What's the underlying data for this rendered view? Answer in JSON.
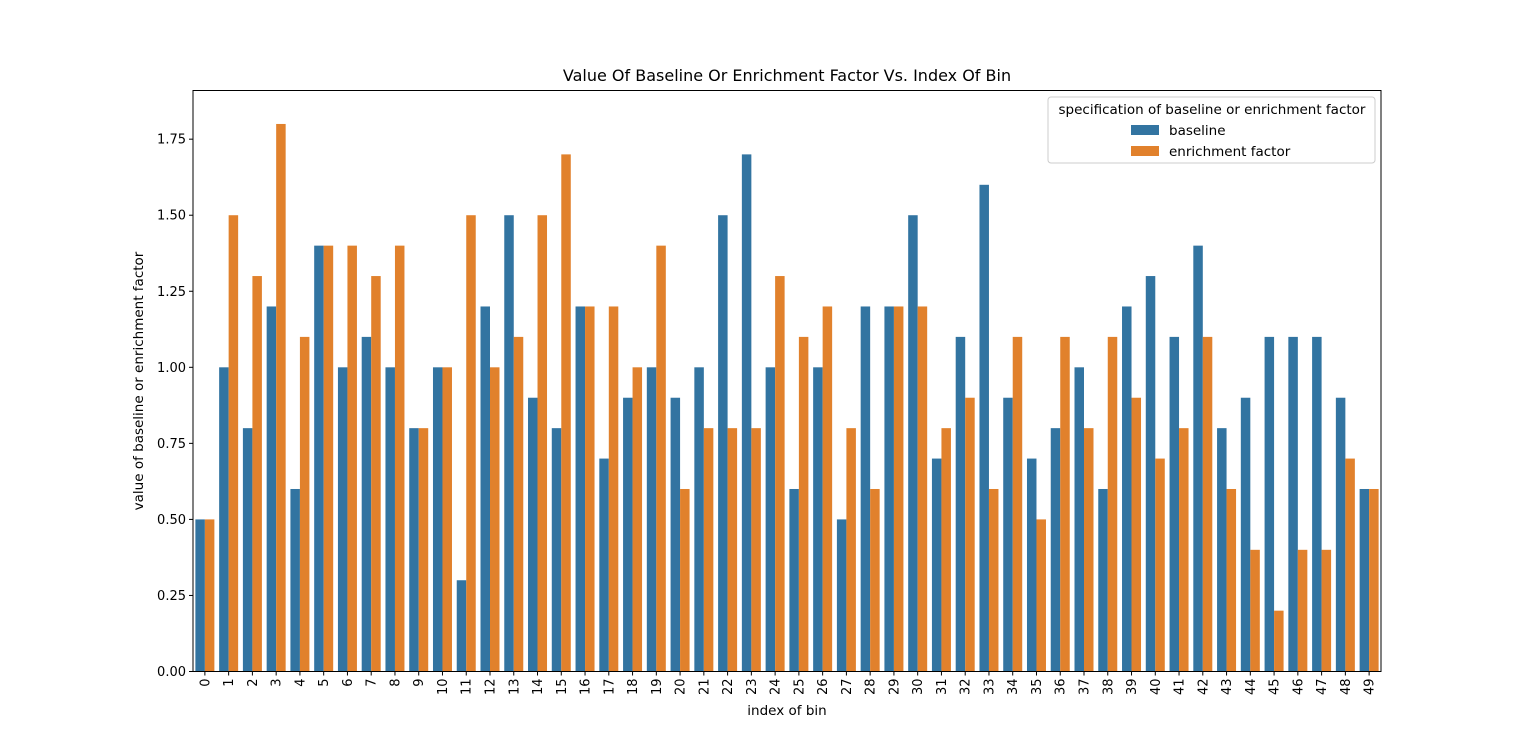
{
  "chart_data": {
    "type": "bar",
    "title": "Value Of Baseline Or Enrichment Factor Vs. Index Of Bin",
    "xlabel": "index of bin",
    "ylabel": "value of baseline or enrichment factor",
    "ylim": [
      0,
      1.91
    ],
    "yticks": [
      "0.00",
      "0.25",
      "0.50",
      "0.75",
      "1.00",
      "1.25",
      "1.50",
      "1.75"
    ],
    "grid": false,
    "legend": {
      "title": "specification of baseline or enrichment factor",
      "placement": "top-right"
    },
    "categories": [
      "0",
      "1",
      "2",
      "3",
      "4",
      "5",
      "6",
      "7",
      "8",
      "9",
      "10",
      "11",
      "12",
      "13",
      "14",
      "15",
      "16",
      "17",
      "18",
      "19",
      "20",
      "21",
      "22",
      "23",
      "24",
      "25",
      "26",
      "27",
      "28",
      "29",
      "30",
      "31",
      "32",
      "33",
      "34",
      "35",
      "36",
      "37",
      "38",
      "39",
      "40",
      "41",
      "42",
      "43",
      "44",
      "45",
      "46",
      "47",
      "48",
      "49"
    ],
    "series": [
      {
        "name": "baseline",
        "color": "#3274a1",
        "values": [
          0.5,
          1.0,
          0.8,
          1.2,
          0.6,
          1.4,
          1.0,
          1.1,
          1.0,
          0.8,
          1.0,
          0.3,
          1.2,
          1.5,
          0.9,
          0.8,
          1.2,
          0.7,
          0.9,
          1.0,
          0.9,
          1.0,
          1.5,
          1.7,
          1.0,
          0.6,
          1.0,
          0.5,
          1.2,
          1.2,
          1.5,
          0.7,
          1.1,
          1.6,
          0.9,
          0.7,
          0.8,
          1.0,
          0.6,
          1.2,
          1.3,
          1.1,
          1.4,
          0.8,
          0.9,
          1.1,
          1.1,
          1.1,
          0.9,
          0.6
        ]
      },
      {
        "name": "enrichment factor",
        "color": "#e1812c",
        "values": [
          0.5,
          1.5,
          1.3,
          1.8,
          1.1,
          1.4,
          1.4,
          1.3,
          1.4,
          0.8,
          1.0,
          1.5,
          1.0,
          1.1,
          1.5,
          1.7,
          1.2,
          1.2,
          1.0,
          1.4,
          0.6,
          0.8,
          0.8,
          0.8,
          1.3,
          1.1,
          1.2,
          0.8,
          0.6,
          1.2,
          1.2,
          0.8,
          0.9,
          0.6,
          1.1,
          0.5,
          1.1,
          0.8,
          1.1,
          0.9,
          0.7,
          0.8,
          1.1,
          0.6,
          0.4,
          0.2,
          0.4,
          0.4,
          0.7,
          0.6
        ]
      }
    ]
  }
}
